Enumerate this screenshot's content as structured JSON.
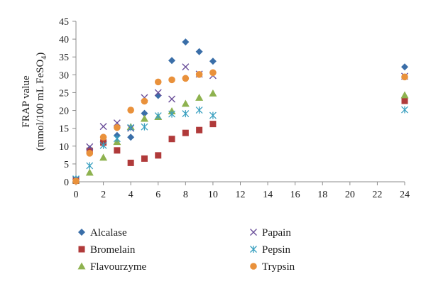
{
  "chart_data": {
    "type": "scatter",
    "title": "",
    "xlabel": "",
    "ylabel": {
      "line1": "FRAP value",
      "line2_prefix": "(mmol/100 mL FeSO",
      "line2_sub": "4",
      "line2_suffix": ")"
    },
    "xlim": [
      0,
      24
    ],
    "ylim": [
      0,
      45
    ],
    "xticks": [
      "0",
      "2",
      "4",
      "6",
      "8",
      "10",
      "12",
      "14",
      "16",
      "18",
      "20",
      "22",
      "24"
    ],
    "yticks": [
      "0",
      "5",
      "10",
      "15",
      "20",
      "25",
      "30",
      "35",
      "40",
      "45"
    ],
    "grid": false,
    "legend_position": "bottom",
    "series": [
      {
        "name": "Alcalase",
        "marker": "diamond",
        "color": "#3a6ea8",
        "points": [
          [
            0,
            0.7
          ],
          [
            1,
            9.2
          ],
          [
            2,
            11.2
          ],
          [
            3,
            13
          ],
          [
            4,
            12.5
          ],
          [
            5,
            19.2
          ],
          [
            6,
            24.2
          ],
          [
            7,
            34
          ],
          [
            8,
            39.2
          ],
          [
            9,
            36.5
          ],
          [
            10,
            33.8
          ],
          [
            24,
            32.2
          ]
        ]
      },
      {
        "name": "Bromelain",
        "marker": "square",
        "color": "#b03a3a",
        "points": [
          [
            0,
            0.3
          ],
          [
            1,
            8.7
          ],
          [
            2,
            11
          ],
          [
            3,
            8.8
          ],
          [
            4,
            5.3
          ],
          [
            5,
            6.5
          ],
          [
            6,
            7.4
          ],
          [
            7,
            12
          ],
          [
            8,
            13.7
          ],
          [
            9,
            14.5
          ],
          [
            10,
            16.2
          ],
          [
            24,
            22.7
          ]
        ]
      },
      {
        "name": "Flavourzyme",
        "marker": "triangle",
        "color": "#8eb24f",
        "points": [
          [
            0,
            0.4
          ],
          [
            1,
            2.6
          ],
          [
            2,
            6.8
          ],
          [
            3,
            11.2
          ],
          [
            4,
            15.4
          ],
          [
            5,
            17.7
          ],
          [
            6,
            18.2
          ],
          [
            7,
            19.8
          ],
          [
            8,
            21.9
          ],
          [
            9,
            23.6
          ],
          [
            10,
            24.8
          ],
          [
            24,
            24.3
          ]
        ]
      },
      {
        "name": "Papain",
        "marker": "x",
        "color": "#6b4f9a",
        "points": [
          [
            0,
            0.6
          ],
          [
            1,
            9.8
          ],
          [
            2,
            15.5
          ],
          [
            3,
            16.5
          ],
          [
            4,
            15
          ],
          [
            5,
            23.6
          ],
          [
            6,
            25
          ],
          [
            7,
            23.2
          ],
          [
            8,
            32.2
          ],
          [
            9,
            30.2
          ],
          [
            10,
            29.8
          ],
          [
            24,
            29.6
          ]
        ]
      },
      {
        "name": "Pepsin",
        "marker": "asterisk",
        "color": "#3aa0c0",
        "points": [
          [
            0,
            0.8
          ],
          [
            1,
            4.5
          ],
          [
            2,
            10.2
          ],
          [
            3,
            12.1
          ],
          [
            4,
            15.2
          ],
          [
            5,
            15.4
          ],
          [
            6,
            18.5
          ],
          [
            7,
            19
          ],
          [
            8,
            19.1
          ],
          [
            9,
            20.1
          ],
          [
            10,
            18.6
          ],
          [
            24,
            20.2
          ]
        ]
      },
      {
        "name": "Trypsin",
        "marker": "circle",
        "color": "#e9913b",
        "points": [
          [
            0,
            0.2
          ],
          [
            1,
            8
          ],
          [
            2,
            12.5
          ],
          [
            3,
            15.2
          ],
          [
            4,
            20.1
          ],
          [
            5,
            22.6
          ],
          [
            6,
            28
          ],
          [
            7,
            28.6
          ],
          [
            8,
            29
          ],
          [
            9,
            30.1
          ],
          [
            10,
            30.6
          ],
          [
            24,
            29.4
          ]
        ]
      }
    ]
  }
}
